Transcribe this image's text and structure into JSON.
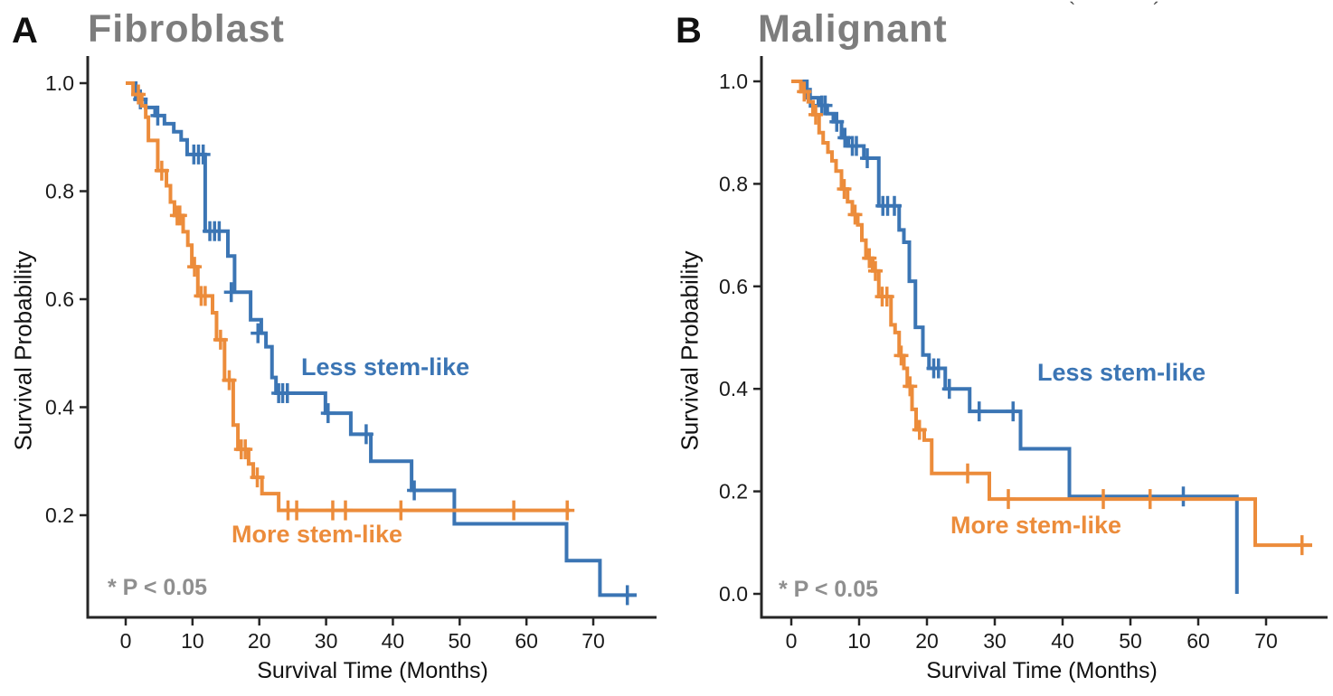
{
  "figure": {
    "artifact_left": "`",
    "artifact_right": "´"
  },
  "chart_data": [
    {
      "id": "A",
      "type": "line",
      "subtype": "kaplan-meier-step",
      "panel_label": "A",
      "title": "Fibroblast",
      "xlabel": "Survival Time (Months)",
      "ylabel": "Survival Probability",
      "annotation": "* P < 0.05",
      "xlim": [
        0,
        79
      ],
      "ylim": [
        0,
        1.0
      ],
      "grid": false,
      "legend_position": "inline-labels",
      "x_ticks": [
        {
          "v": 0,
          "l": "0"
        },
        {
          "v": 10,
          "l": "10"
        },
        {
          "v": 20,
          "l": "20"
        },
        {
          "v": 30,
          "l": "30"
        },
        {
          "v": 40,
          "l": "40"
        },
        {
          "v": 50,
          "l": "50"
        },
        {
          "v": 60,
          "l": "60"
        },
        {
          "v": 70,
          "l": "70"
        }
      ],
      "y_ticks": [
        {
          "v": 1.0,
          "l": "1.0"
        },
        {
          "v": 0.8,
          "l": "0.8"
        },
        {
          "v": 0.6,
          "l": "0.6"
        },
        {
          "v": 0.4,
          "l": "0.4"
        },
        {
          "v": 0.2,
          "l": "0.2"
        }
      ],
      "series": [
        {
          "name": "Less stem-like",
          "color": "#3B75B4",
          "end_x": 76.5,
          "steps": [
            [
              0,
              1.0
            ],
            [
              1.5,
              0.97
            ],
            [
              3.0,
              0.955
            ],
            [
              4.4,
              0.94
            ],
            [
              5.8,
              0.925
            ],
            [
              7.2,
              0.91
            ],
            [
              8.3,
              0.895
            ],
            [
              9.2,
              0.868
            ],
            [
              11.9,
              0.726
            ],
            [
              15.3,
              0.68
            ],
            [
              16.3,
              0.613
            ],
            [
              18.7,
              0.562
            ],
            [
              20.3,
              0.537
            ],
            [
              21.0,
              0.512
            ],
            [
              21.9,
              0.455
            ],
            [
              22.5,
              0.426
            ],
            [
              29.9,
              0.389
            ],
            [
              33.7,
              0.35
            ],
            [
              36.7,
              0.3
            ],
            [
              42.8,
              0.246
            ],
            [
              49.2,
              0.184
            ],
            [
              66.0,
              0.116
            ],
            [
              71.0,
              0.052
            ]
          ],
          "censors": [
            [
              2.2,
              0.97
            ],
            [
              4.8,
              0.94
            ],
            [
              10.2,
              0.868
            ],
            [
              10.9,
              0.868
            ],
            [
              11.6,
              0.868
            ],
            [
              12.6,
              0.726
            ],
            [
              13.3,
              0.726
            ],
            [
              14.0,
              0.726
            ],
            [
              15.8,
              0.613
            ],
            [
              19.8,
              0.537
            ],
            [
              22.9,
              0.426
            ],
            [
              23.5,
              0.426
            ],
            [
              24.2,
              0.426
            ],
            [
              30.3,
              0.389
            ],
            [
              36.0,
              0.35
            ],
            [
              43.2,
              0.246
            ],
            [
              75.1,
              0.052
            ]
          ]
        },
        {
          "name": "More stem-like",
          "color": "#EC8C3B",
          "end_x": 66.5,
          "steps": [
            [
              0,
              1.0
            ],
            [
              1.1,
              0.979
            ],
            [
              2.4,
              0.958
            ],
            [
              3.0,
              0.937
            ],
            [
              3.4,
              0.894
            ],
            [
              4.8,
              0.838
            ],
            [
              6.1,
              0.81
            ],
            [
              6.7,
              0.78
            ],
            [
              7.3,
              0.755
            ],
            [
              8.6,
              0.725
            ],
            [
              9.3,
              0.7
            ],
            [
              9.9,
              0.66
            ],
            [
              10.8,
              0.606
            ],
            [
              13.0,
              0.575
            ],
            [
              13.6,
              0.525
            ],
            [
              14.8,
              0.45
            ],
            [
              16.1,
              0.367
            ],
            [
              16.8,
              0.322
            ],
            [
              18.4,
              0.295
            ],
            [
              19.1,
              0.27
            ],
            [
              20.4,
              0.24
            ],
            [
              22.9,
              0.209
            ]
          ],
          "censors": [
            [
              1.9,
              0.979
            ],
            [
              5.4,
              0.838
            ],
            [
              7.7,
              0.755
            ],
            [
              8.1,
              0.755
            ],
            [
              10.3,
              0.66
            ],
            [
              11.3,
              0.606
            ],
            [
              11.9,
              0.606
            ],
            [
              14.2,
              0.525
            ],
            [
              15.5,
              0.45
            ],
            [
              17.3,
              0.322
            ],
            [
              17.9,
              0.322
            ],
            [
              19.7,
              0.27
            ],
            [
              24.3,
              0.209
            ],
            [
              25.6,
              0.209
            ],
            [
              31.0,
              0.209
            ],
            [
              32.9,
              0.209
            ],
            [
              41.2,
              0.209
            ],
            [
              58.1,
              0.209
            ],
            [
              66.1,
              0.209
            ]
          ]
        }
      ]
    },
    {
      "id": "B",
      "type": "line",
      "subtype": "kaplan-meier-step",
      "panel_label": "B",
      "title": "Malignant",
      "xlabel": "Survival Time (Months)",
      "ylabel": "Survival Probability",
      "annotation": "* P < 0.05",
      "xlim": [
        0,
        79
      ],
      "ylim": [
        0,
        1.0
      ],
      "grid": false,
      "legend_position": "inline-labels",
      "x_ticks": [
        {
          "v": 0,
          "l": "0"
        },
        {
          "v": 10,
          "l": "10"
        },
        {
          "v": 20,
          "l": "20"
        },
        {
          "v": 30,
          "l": "30"
        },
        {
          "v": 40,
          "l": "40"
        },
        {
          "v": 50,
          "l": "50"
        },
        {
          "v": 60,
          "l": "60"
        },
        {
          "v": 70,
          "l": "70"
        }
      ],
      "y_ticks": [
        {
          "v": 1.0,
          "l": "1.0"
        },
        {
          "v": 0.8,
          "l": "0.8"
        },
        {
          "v": 0.6,
          "l": "0.6"
        },
        {
          "v": 0.4,
          "l": "0.4"
        },
        {
          "v": 0.2,
          "l": "0.2"
        },
        {
          "v": 0.0,
          "l": "0.0"
        }
      ],
      "series": [
        {
          "name": "Less stem-like",
          "color": "#3B75B4",
          "end_x": 65.7,
          "steps": [
            [
              0,
              1.0
            ],
            [
              2.3,
              0.968
            ],
            [
              4.0,
              0.953
            ],
            [
              5.3,
              0.937
            ],
            [
              6.2,
              0.921
            ],
            [
              7.4,
              0.89
            ],
            [
              8.4,
              0.874
            ],
            [
              10.7,
              0.85
            ],
            [
              12.9,
              0.757
            ],
            [
              15.9,
              0.71
            ],
            [
              16.6,
              0.686
            ],
            [
              17.4,
              0.61
            ],
            [
              18.3,
              0.52
            ],
            [
              19.4,
              0.466
            ],
            [
              20.3,
              0.44
            ],
            [
              22.7,
              0.4
            ],
            [
              26.3,
              0.356
            ],
            [
              33.8,
              0.283
            ],
            [
              41.0,
              0.19
            ],
            [
              65.7,
              0.0
            ]
          ],
          "censors": [
            [
              2.8,
              0.968
            ],
            [
              4.5,
              0.953
            ],
            [
              5.0,
              0.953
            ],
            [
              6.7,
              0.921
            ],
            [
              7.9,
              0.89
            ],
            [
              9.0,
              0.874
            ],
            [
              9.6,
              0.874
            ],
            [
              11.2,
              0.85
            ],
            [
              13.5,
              0.757
            ],
            [
              14.2,
              0.757
            ],
            [
              15.2,
              0.757
            ],
            [
              21.0,
              0.44
            ],
            [
              21.7,
              0.44
            ],
            [
              23.3,
              0.4
            ],
            [
              27.7,
              0.356
            ],
            [
              32.7,
              0.356
            ],
            [
              57.8,
              0.19
            ]
          ]
        },
        {
          "name": "More stem-like",
          "color": "#EC8C3B",
          "end_x": 76.8,
          "steps": [
            [
              0,
              1.0
            ],
            [
              1.4,
              0.98
            ],
            [
              2.5,
              0.96
            ],
            [
              3.2,
              0.935
            ],
            [
              4.1,
              0.9
            ],
            [
              4.7,
              0.88
            ],
            [
              5.4,
              0.862
            ],
            [
              6.0,
              0.845
            ],
            [
              6.6,
              0.825
            ],
            [
              7.4,
              0.79
            ],
            [
              8.3,
              0.765
            ],
            [
              9.0,
              0.74
            ],
            [
              9.8,
              0.72
            ],
            [
              10.4,
              0.69
            ],
            [
              11.0,
              0.655
            ],
            [
              12.0,
              0.63
            ],
            [
              12.9,
              0.58
            ],
            [
              14.7,
              0.525
            ],
            [
              15.3,
              0.51
            ],
            [
              15.9,
              0.465
            ],
            [
              16.6,
              0.44
            ],
            [
              17.1,
              0.405
            ],
            [
              17.8,
              0.36
            ],
            [
              18.4,
              0.32
            ],
            [
              19.6,
              0.3
            ],
            [
              20.7,
              0.235
            ],
            [
              29.2,
              0.185
            ],
            [
              68.4,
              0.095
            ]
          ],
          "censors": [
            [
              1.9,
              0.98
            ],
            [
              3.6,
              0.935
            ],
            [
              7.8,
              0.79
            ],
            [
              9.4,
              0.74
            ],
            [
              11.5,
              0.655
            ],
            [
              12.4,
              0.63
            ],
            [
              13.4,
              0.58
            ],
            [
              14.1,
              0.58
            ],
            [
              16.2,
              0.465
            ],
            [
              17.5,
              0.405
            ],
            [
              18.9,
              0.32
            ],
            [
              26.0,
              0.235
            ],
            [
              32.0,
              0.185
            ],
            [
              46.0,
              0.185
            ],
            [
              52.9,
              0.185
            ],
            [
              75.3,
              0.095
            ]
          ]
        }
      ]
    }
  ]
}
